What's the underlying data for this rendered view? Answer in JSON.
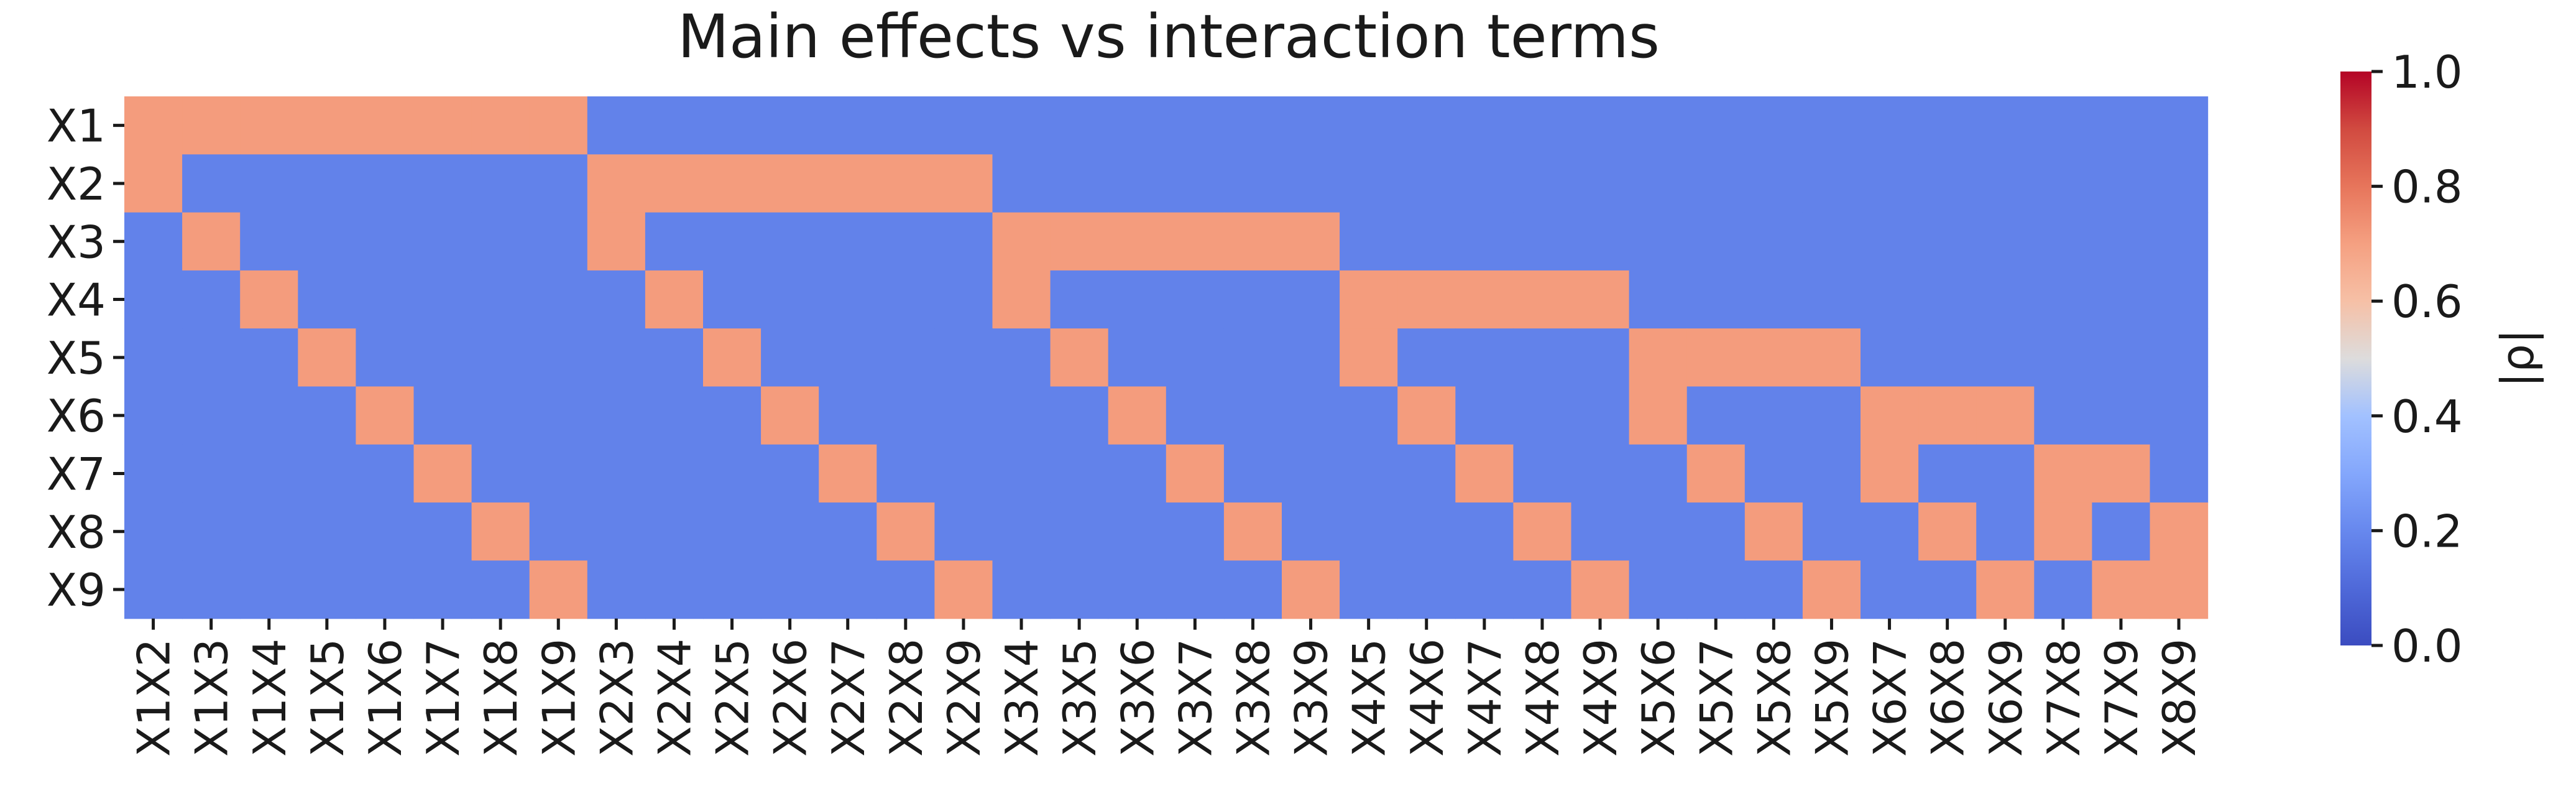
{
  "chart_data": {
    "type": "heatmap",
    "title": "Main effects vs interaction terms",
    "xlabel": "",
    "ylabel": "",
    "rows": [
      "X1",
      "X2",
      "X3",
      "X4",
      "X5",
      "X6",
      "X7",
      "X8",
      "X9"
    ],
    "columns": [
      "X1X2",
      "X1X3",
      "X1X4",
      "X1X5",
      "X1X6",
      "X1X7",
      "X1X8",
      "X1X9",
      "X2X3",
      "X2X4",
      "X2X5",
      "X2X6",
      "X2X7",
      "X2X8",
      "X2X9",
      "X3X4",
      "X3X5",
      "X3X6",
      "X3X7",
      "X3X8",
      "X3X9",
      "X4X5",
      "X4X6",
      "X4X7",
      "X4X8",
      "X4X9",
      "X5X6",
      "X5X7",
      "X5X8",
      "X5X9",
      "X6X7",
      "X6X8",
      "X6X9",
      "X7X8",
      "X7X9",
      "X8X9"
    ],
    "high_value": 0.71,
    "low_value": 0.18,
    "colormap": "coolwarm",
    "colorbar": {
      "label": "|ρ|",
      "range": [
        0.0,
        1.0
      ],
      "ticks": [
        "0.0",
        "0.2",
        "0.4",
        "0.6",
        "0.8",
        "1.0"
      ]
    },
    "legend": "colorbar-right",
    "grid": false
  }
}
